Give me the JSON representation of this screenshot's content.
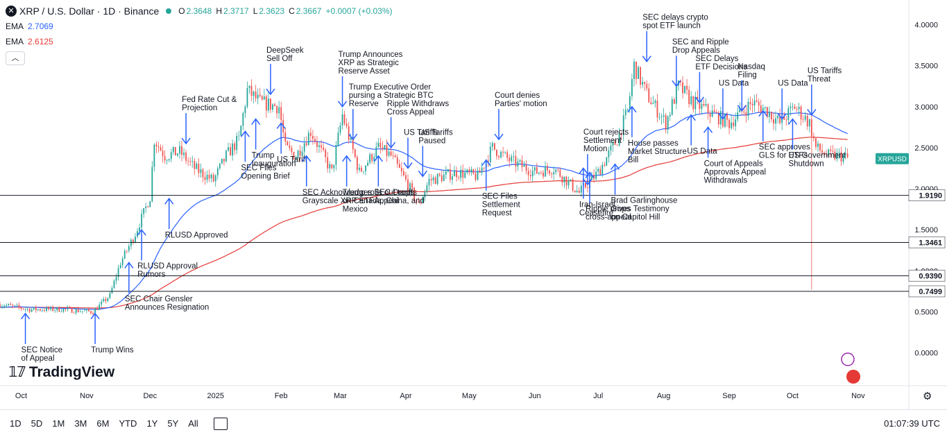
{
  "header": {
    "symbol_icon": "x-logo-icon",
    "title": "XRP / U.S. Dollar · 1D · Binance",
    "ohlc": {
      "o_label": "O",
      "o": "2.3648",
      "h_label": "H",
      "h": "2.3717",
      "l_label": "L",
      "l": "2.3623",
      "c_label": "C",
      "c": "2.3667",
      "change": "+0.0007 (+0.03%)"
    },
    "ema1": {
      "label": "EMA",
      "value": "2.7069",
      "color": "#2962ff"
    },
    "ema2": {
      "label": "EMA",
      "value": "2.6125",
      "color": "#e53935"
    }
  },
  "toolbar": {
    "timeframes": [
      "1D",
      "5D",
      "1M",
      "3M",
      "6M",
      "YTD",
      "1Y",
      "5Y",
      "All"
    ],
    "clock": "01:07:39 UTC"
  },
  "logo": {
    "text": "TradingView"
  },
  "chart_data": {
    "type": "candlestick",
    "ylim": [
      -0.4,
      4.3
    ],
    "y_ticks": [
      "0.0000",
      "0.5000",
      "1.0000",
      "1.5000",
      "2.0000",
      "2.5000",
      "3.0000",
      "3.5000",
      "4.0000"
    ],
    "x_ticks": [
      {
        "label": "Oct",
        "date": "2024-10-01"
      },
      {
        "label": "Nov",
        "date": "2024-11-01"
      },
      {
        "label": "Dec",
        "date": "2024-12-01"
      },
      {
        "label": "2025",
        "date": "2025-01-01"
      },
      {
        "label": "Feb",
        "date": "2025-02-01"
      },
      {
        "label": "Mar",
        "date": "2025-03-01"
      },
      {
        "label": "Apr",
        "date": "2025-04-01"
      },
      {
        "label": "May",
        "date": "2025-05-01"
      },
      {
        "label": "Jun",
        "date": "2025-06-01"
      },
      {
        "label": "Jul",
        "date": "2025-07-01"
      },
      {
        "label": "Aug",
        "date": "2025-08-01"
      },
      {
        "label": "Sep",
        "date": "2025-09-01"
      },
      {
        "label": "Oct",
        "date": "2025-10-01"
      },
      {
        "label": "Nov",
        "date": "2025-11-01"
      }
    ],
    "x_range": [
      "2024-09-21",
      "2025-11-25"
    ],
    "price_label": {
      "text": "XRPUSD",
      "value": 2.3667,
      "color": "#26a69a"
    },
    "horizontal_levels": [
      1.919,
      1.3461,
      0.939,
      0.7499
    ],
    "horizontal_level_labels": [
      "1.9190",
      "1.3461",
      "0.9390",
      "0.7499"
    ],
    "price_anchors": [
      [
        "2024-09-21",
        0.59
      ],
      [
        "2024-10-05",
        0.53
      ],
      [
        "2024-10-20",
        0.53
      ],
      [
        "2024-11-04",
        0.5
      ],
      [
        "2024-11-12",
        0.7
      ],
      [
        "2024-11-17",
        1.1
      ],
      [
        "2024-11-24",
        1.45
      ],
      [
        "2024-12-01",
        1.9
      ],
      [
        "2024-12-03",
        2.6
      ],
      [
        "2024-12-08",
        2.4
      ],
      [
        "2024-12-15",
        2.45
      ],
      [
        "2024-12-22",
        2.25
      ],
      [
        "2024-12-31",
        2.1
      ],
      [
        "2025-01-06",
        2.4
      ],
      [
        "2025-01-12",
        2.6
      ],
      [
        "2025-01-16",
        3.2
      ],
      [
        "2025-01-22",
        3.05
      ],
      [
        "2025-01-31",
        3.0
      ],
      [
        "2025-02-03",
        2.5
      ],
      [
        "2025-02-08",
        2.4
      ],
      [
        "2025-02-15",
        2.7
      ],
      [
        "2025-02-25",
        2.2
      ],
      [
        "2025-03-02",
        2.9
      ],
      [
        "2025-03-10",
        2.2
      ],
      [
        "2025-03-19",
        2.5
      ],
      [
        "2025-03-25",
        2.4
      ],
      [
        "2025-04-02",
        2.05
      ],
      [
        "2025-04-07",
        1.8
      ],
      [
        "2025-04-12",
        2.1
      ],
      [
        "2025-04-25",
        2.2
      ],
      [
        "2025-05-05",
        2.15
      ],
      [
        "2025-05-12",
        2.5
      ],
      [
        "2025-05-20",
        2.35
      ],
      [
        "2025-06-01",
        2.2
      ],
      [
        "2025-06-10",
        2.25
      ],
      [
        "2025-06-22",
        1.95
      ],
      [
        "2025-07-01",
        2.2
      ],
      [
        "2025-07-10",
        2.6
      ],
      [
        "2025-07-15",
        2.95
      ],
      [
        "2025-07-18",
        3.5
      ],
      [
        "2025-07-24",
        3.15
      ],
      [
        "2025-08-02",
        2.8
      ],
      [
        "2025-08-08",
        3.25
      ],
      [
        "2025-08-15",
        3.05
      ],
      [
        "2025-08-25",
        2.9
      ],
      [
        "2025-09-01",
        2.8
      ],
      [
        "2025-09-12",
        3.05
      ],
      [
        "2025-09-19",
        2.95
      ],
      [
        "2025-09-25",
        2.8
      ],
      [
        "2025-10-02",
        3.0
      ],
      [
        "2025-10-09",
        2.8
      ],
      [
        "2025-10-12",
        2.5
      ],
      [
        "2025-10-18",
        2.4
      ],
      [
        "2025-10-24",
        2.4
      ],
      [
        "2025-10-27",
        2.37
      ]
    ],
    "series": [
      {
        "name": "EMA",
        "color": "#2962ff"
      },
      {
        "name": "EMA",
        "color": "#e53935"
      }
    ],
    "annotations": [
      {
        "text": [
          "SEC Notice",
          "of Appeal"
        ],
        "date": "2024-10-03",
        "price": 0.48,
        "dir": "up"
      },
      {
        "text": [
          "Trump Wins"
        ],
        "date": "2024-11-05",
        "price": 0.48,
        "dir": "up"
      },
      {
        "text": [
          "SEC Chair Gensler",
          "Announces Resignation"
        ],
        "date": "2024-11-21",
        "price": 1.1,
        "dir": "up"
      },
      {
        "text": [
          "RLUSD Approval",
          "Rumors"
        ],
        "date": "2024-11-27",
        "price": 1.5,
        "dir": "up"
      },
      {
        "text": [
          "RLUSD Approved"
        ],
        "date": "2024-12-10",
        "price": 1.88,
        "dir": "up"
      },
      {
        "text": [
          "Fed Rate Cut &",
          "Projection"
        ],
        "date": "2024-12-18",
        "price": 2.55,
        "dir": "down"
      },
      {
        "text": [
          "SEC Files",
          "Opening Brief"
        ],
        "date": "2025-01-15",
        "price": 2.7,
        "dir": "up"
      },
      {
        "text": [
          "Trump",
          "Inauguration"
        ],
        "date": "2025-01-20",
        "price": 2.85,
        "dir": "up"
      },
      {
        "text": [
          "DeepSeek",
          "Sell Off"
        ],
        "date": "2025-01-27",
        "price": 3.15,
        "dir": "down"
      },
      {
        "text": [
          "US Tariff"
        ],
        "date": "2025-02-01",
        "price": 2.8,
        "dir": "up"
      },
      {
        "text": [
          "SEC Acknowledges",
          "Grayscale XRP ETF"
        ],
        "date": "2025-02-13",
        "price": 2.4,
        "dir": "up"
      },
      {
        "text": [
          "Trump rolls out tariffs",
          "on Canada, China, and",
          "Mexico"
        ],
        "date": "2025-03-04",
        "price": 2.4,
        "dir": "up"
      },
      {
        "text": [
          "Trump Announces",
          "XRP as Strategic",
          "Reserve Asset"
        ],
        "date": "2025-03-02",
        "price": 3.0,
        "dir": "down"
      },
      {
        "text": [
          "Trump Executive Order",
          "pursing a Strategic BTC",
          "Reserve"
        ],
        "date": "2025-03-07",
        "price": 2.6,
        "dir": "down"
      },
      {
        "text": [
          "SEC Drops",
          "Appeal"
        ],
        "date": "2025-03-19",
        "price": 2.4,
        "dir": "up"
      },
      {
        "text": [
          "Ripple Withdraws",
          "Cross Appeal"
        ],
        "date": "2025-03-25",
        "price": 2.5,
        "dir": "down"
      },
      {
        "text": [
          "US Tariffs"
        ],
        "date": "2025-04-02",
        "price": 2.25,
        "dir": "down"
      },
      {
        "text": [
          "US Tariffs",
          "Paused"
        ],
        "date": "2025-04-09",
        "price": 2.15,
        "dir": "down"
      },
      {
        "text": [
          "SEC Files",
          "Settlement",
          "Request"
        ],
        "date": "2025-05-09",
        "price": 2.35,
        "dir": "up"
      },
      {
        "text": [
          "Court denies",
          "Parties' motion"
        ],
        "date": "2025-05-15",
        "price": 2.6,
        "dir": "down"
      },
      {
        "text": [
          "Iran-Israel",
          "Ceasefire"
        ],
        "date": "2025-06-24",
        "price": 2.25,
        "dir": "up"
      },
      {
        "text": [
          "Court rejects",
          "Settlement",
          "Motion"
        ],
        "date": "2025-06-26",
        "price": 2.05,
        "dir": "down"
      },
      {
        "text": [
          "Ripple drops",
          "cross-appeal"
        ],
        "date": "2025-06-27",
        "price": 2.2,
        "dir": "up"
      },
      {
        "text": [
          "Brad Garlinghouse",
          "Gives Testimony",
          "on Capitol Hill"
        ],
        "date": "2025-07-09",
        "price": 2.3,
        "dir": "up"
      },
      {
        "text": [
          "House passes",
          "Market Structure",
          "Bill"
        ],
        "date": "2025-07-17",
        "price": 3.0,
        "dir": "up"
      },
      {
        "text": [
          "SEC delays crypto",
          "spot ETF launch"
        ],
        "date": "2025-07-24",
        "price": 3.55,
        "dir": "down"
      },
      {
        "text": [
          "SEC and Ripple",
          "Drop Appeals"
        ],
        "date": "2025-08-07",
        "price": 3.25,
        "dir": "down"
      },
      {
        "text": [
          "US Data"
        ],
        "date": "2025-08-14",
        "price": 2.9,
        "dir": "up"
      },
      {
        "text": [
          "SEC Delays",
          "ETF Decisions"
        ],
        "date": "2025-08-18",
        "price": 3.05,
        "dir": "down"
      },
      {
        "text": [
          "Court of Appeals",
          "Approvals Appeal",
          "Withdrawals"
        ],
        "date": "2025-08-22",
        "price": 2.75,
        "dir": "up"
      },
      {
        "text": [
          "US Data"
        ],
        "date": "2025-08-29",
        "price": 2.85,
        "dir": "down"
      },
      {
        "text": [
          "Nasdaq",
          "Filing"
        ],
        "date": "2025-09-07",
        "price": 2.95,
        "dir": "down"
      },
      {
        "text": [
          "SEC approves",
          "GLS for ETFs"
        ],
        "date": "2025-09-17",
        "price": 2.95,
        "dir": "up"
      },
      {
        "text": [
          "US Data"
        ],
        "date": "2025-09-26",
        "price": 2.85,
        "dir": "down"
      },
      {
        "text": [
          "US Government",
          "Shutdown"
        ],
        "date": "2025-10-01",
        "price": 2.85,
        "dir": "up"
      },
      {
        "text": [
          "US Tariffs",
          "Threat"
        ],
        "date": "2025-10-10",
        "price": 2.9,
        "dir": "down"
      }
    ]
  }
}
